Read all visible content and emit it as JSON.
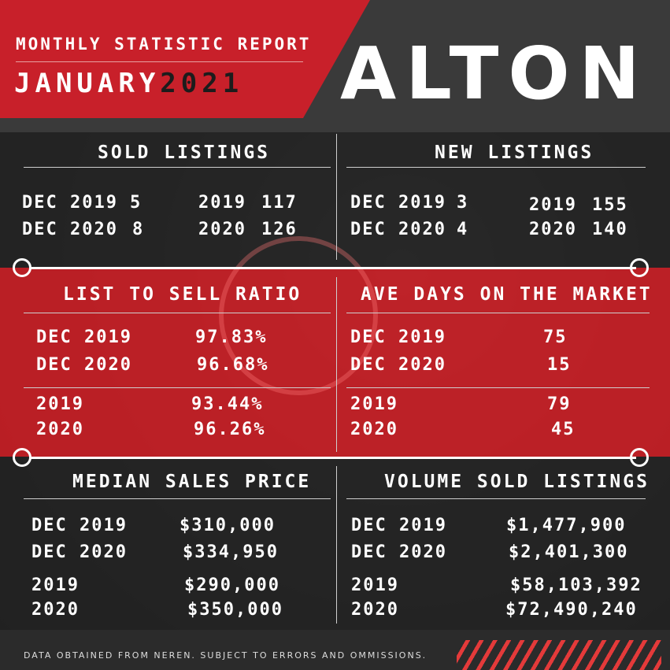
{
  "header": {
    "report_title": "MONTHLY STATISTIC REPORT",
    "month": "JANUARY",
    "year": "2021",
    "city": "ALTON"
  },
  "sold_listings": {
    "title": "SOLD LISTINGS",
    "rows": [
      {
        "label": "DEC 2019",
        "value": "5",
        "year": "2019",
        "year_value": "117"
      },
      {
        "label": "DEC 2020",
        "value": "8",
        "year": "2020",
        "year_value": "126"
      }
    ]
  },
  "new_listings": {
    "title": "NEW LISTINGS",
    "rows": [
      {
        "label": "DEC 2019",
        "value": "3",
        "year": "2019",
        "year_value": "155"
      },
      {
        "label": "DEC 2020",
        "value": "4",
        "year": "2020",
        "year_value": "140"
      }
    ]
  },
  "list_to_sell": {
    "title": "LIST TO SELL RATIO",
    "rows": [
      {
        "label": "DEC 2019",
        "value": "97.83%"
      },
      {
        "label": "DEC 2020",
        "value": "96.68%"
      },
      {
        "label": "2019",
        "value": "93.44%"
      },
      {
        "label": "2020",
        "value": "96.26%"
      }
    ]
  },
  "ave_days": {
    "title": "AVE DAYS ON THE MARKET",
    "rows": [
      {
        "label": "DEC 2019",
        "value": "75"
      },
      {
        "label": "DEC 2020",
        "value": "15"
      },
      {
        "label": "2019",
        "value": "79"
      },
      {
        "label": "2020",
        "value": "45"
      }
    ]
  },
  "median_price": {
    "title": "MEDIAN SALES PRICE",
    "rows": [
      {
        "label": "DEC 2019",
        "value": "$310,000"
      },
      {
        "label": "DEC 2020",
        "value": "$334,950"
      },
      {
        "label": "2019",
        "value": "$290,000"
      },
      {
        "label": "2020",
        "value": "$350,000"
      }
    ]
  },
  "volume_sold": {
    "title": "VOLUME SOLD LISTINGS",
    "rows": [
      {
        "label": "DEC 2019",
        "value": "$1,477,900"
      },
      {
        "label": "DEC 2020",
        "value": "$2,401,300"
      },
      {
        "label": "2019",
        "value": "$58,103,392"
      },
      {
        "label": "2020",
        "value": "$72,490,240"
      }
    ]
  },
  "footer": {
    "disclaimer": "DATA OBTAINED FROM NEREN. SUBJECT TO ERRORS AND OMMISSIONS."
  },
  "colors": {
    "brand_red": "#c8202a",
    "dark": "#222222",
    "text": "#ffffff"
  }
}
